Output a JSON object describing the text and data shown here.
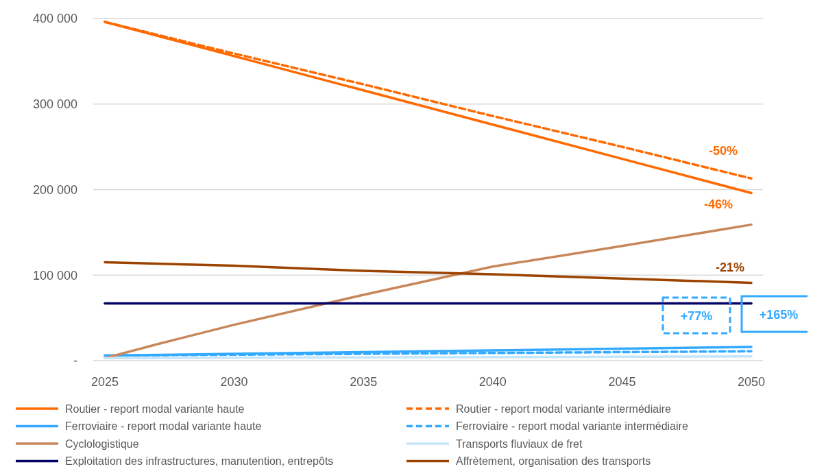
{
  "chart_data": {
    "type": "line",
    "xlim": [
      2024.55,
      2050.45
    ],
    "xticks": [
      2025,
      2030,
      2035,
      2040,
      2045,
      2050
    ],
    "ylim": [
      0,
      400000
    ],
    "yticks": [
      {
        "value": 0,
        "label": "-"
      },
      {
        "value": 100000,
        "label": "100 000"
      },
      {
        "value": 200000,
        "label": "200 000"
      },
      {
        "value": 300000,
        "label": "300 000"
      },
      {
        "value": 400000,
        "label": "400 000"
      }
    ],
    "grid": "y",
    "legend": "bottom",
    "marker": "none",
    "series": [
      {
        "name": "Routier - report modal variante haute",
        "color": "#ff6a00",
        "line_style": "solid",
        "x": [
          2025,
          2030,
          2035,
          2040,
          2045,
          2050
        ],
        "values": [
          396000,
          356000,
          316000,
          276000,
          236000,
          196000
        ]
      },
      {
        "name": "Routier - report modal variante intermédiaire",
        "color": "#ff6a00",
        "line_style": "dashed",
        "x": [
          2025,
          2030,
          2035,
          2040,
          2045,
          2050
        ],
        "values": [
          396000,
          359000,
          323000,
          286000,
          250000,
          213000
        ]
      },
      {
        "name": "Ferroviaire - report modal variante haute",
        "color": "#33aaff",
        "line_style": "solid",
        "x": [
          2025,
          2030,
          2035,
          2040,
          2045,
          2050
        ],
        "values": [
          6000,
          8000,
          10000,
          12000,
          14000,
          16000
        ]
      },
      {
        "name": "Ferroviaire - report modal variante intermédiaire",
        "color": "#33aaff",
        "line_style": "dashed",
        "x": [
          2025,
          2030,
          2035,
          2040,
          2045,
          2050
        ],
        "values": [
          6000,
          7000,
          8000,
          9000,
          10000,
          11000
        ]
      },
      {
        "name": "Cyclologistique",
        "color": "#c8875a",
        "line_style": "solid",
        "x": [
          2025,
          2027,
          2030,
          2035,
          2040,
          2045,
          2050
        ],
        "values": [
          3000,
          19000,
          42000,
          77000,
          110000,
          134000,
          159000
        ]
      },
      {
        "name": "Transports fluviaux de fret",
        "color": "#c5e5fb",
        "line_style": "solid",
        "x": [
          2025,
          2050
        ],
        "values": [
          3000,
          5000
        ]
      },
      {
        "name": "Exploitation des infrastructures, manutention, entrepôts",
        "color": "#000066",
        "line_style": "solid",
        "x": [
          2025,
          2050
        ],
        "values": [
          67000,
          67000
        ]
      },
      {
        "name": "Affrètement, organisation des transports",
        "color": "#9c4300",
        "line_style": "solid",
        "x": [
          2025,
          2030,
          2035,
          2040,
          2045,
          2050
        ],
        "values": [
          115000,
          111000,
          105000,
          101000,
          96000,
          91000
        ]
      }
    ],
    "annotations": [
      "-50%",
      "-46%",
      "-21%",
      "+77%",
      "+165%"
    ]
  }
}
